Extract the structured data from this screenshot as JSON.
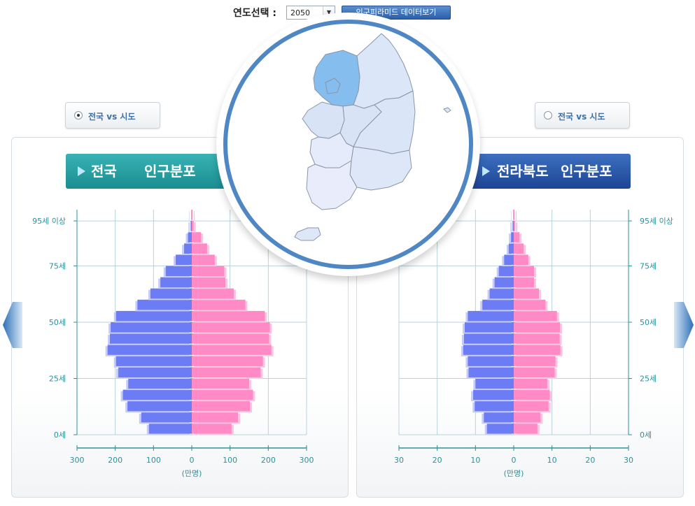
{
  "controls": {
    "year_label": "연도선택 :",
    "year_value": "2050",
    "year_arrow": "▼",
    "pyramid_button": "인구피라미드 데이터보기"
  },
  "compare": {
    "left_label": "전국 vs 시도",
    "right_label": "전국 vs 시도",
    "left_selected": true
  },
  "titles": {
    "left_region": "전국",
    "left_suffix": "인구분포",
    "right_region": "전라북도",
    "right_suffix": "인구분포"
  },
  "colors": {
    "male": "#6b7cf5",
    "female": "#ff8ac6",
    "grid": "#b9d2dc",
    "axis": "#2f8f9a",
    "map_selected": "#84bdee",
    "map_region": "#d8e3f6",
    "map_ring": "#4e87c4"
  },
  "map": {
    "selected_region": "경기도",
    "regions": [
      "경기도",
      "강원도",
      "충청북도",
      "충청남도",
      "경상북도",
      "전라북도",
      "경상남도",
      "전라남도",
      "제주도"
    ]
  },
  "chart_data": [
    {
      "type": "bar",
      "orientation": "horizontal-pyramid",
      "title": "전국 인구분포",
      "unit": "(만명)",
      "age_labels": [
        "0세",
        "25세",
        "50세",
        "75세",
        "95세 이상"
      ],
      "age_label_positions": [
        0,
        25,
        50,
        75,
        95
      ],
      "x_ticks": [
        "300",
        "200",
        "100",
        "0",
        "100",
        "200",
        "300"
      ],
      "xlim": [
        0,
        300
      ],
      "age_groups": [
        "0-4",
        "5-9",
        "10-14",
        "15-19",
        "20-24",
        "25-29",
        "30-34",
        "35-39",
        "40-44",
        "45-49",
        "50-54",
        "55-59",
        "60-64",
        "65-69",
        "70-74",
        "75-79",
        "80-84",
        "85-89",
        "90-94",
        "95+"
      ],
      "series": [
        {
          "name": "male",
          "values": [
            112,
            132,
            168,
            180,
            166,
            192,
            198,
            220,
            214,
            212,
            198,
            142,
            108,
            82,
            68,
            42,
            20,
            10,
            3,
            1
          ]
        },
        {
          "name": "female",
          "values": [
            104,
            121,
            152,
            160,
            150,
            180,
            186,
            208,
            202,
            204,
            191,
            140,
            110,
            88,
            85,
            60,
            40,
            24,
            5,
            2
          ]
        }
      ]
    },
    {
      "type": "bar",
      "orientation": "horizontal-pyramid",
      "title": "전라북도 인구분포",
      "unit": "(만명)",
      "age_labels": [
        "0세",
        "25세",
        "50세",
        "75세",
        "95세 이상"
      ],
      "age_label_positions": [
        0,
        25,
        50,
        75,
        95
      ],
      "x_ticks": [
        "30",
        "20",
        "10",
        "0",
        "10",
        "20",
        "30"
      ],
      "xlim": [
        0,
        30
      ],
      "age_groups": [
        "0-4",
        "5-9",
        "10-14",
        "15-19",
        "20-24",
        "25-29",
        "30-34",
        "35-39",
        "40-44",
        "45-49",
        "50-54",
        "55-59",
        "60-64",
        "65-69",
        "70-74",
        "75-79",
        "80-84",
        "85-89",
        "90-94",
        "95+"
      ],
      "series": [
        {
          "name": "male",
          "values": [
            7.0,
            7.8,
            10.2,
            10.6,
            10.0,
            11.8,
            12.0,
            13.2,
            13.0,
            12.8,
            12.0,
            8.2,
            6.3,
            5.0,
            3.9,
            2.5,
            1.3,
            0.7,
            0.3,
            0.1
          ]
        },
        {
          "name": "female",
          "values": [
            6.2,
            7.0,
            9.1,
            9.4,
            8.8,
            10.7,
            10.9,
            12.2,
            12.0,
            12.1,
            11.3,
            8.3,
            6.6,
            5.3,
            5.3,
            3.8,
            2.6,
            1.5,
            0.4,
            0.2
          ]
        }
      ]
    }
  ]
}
